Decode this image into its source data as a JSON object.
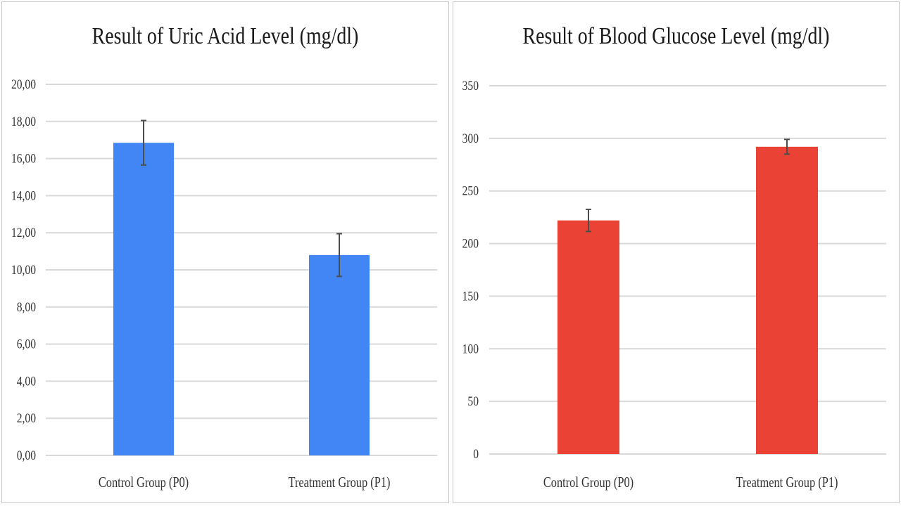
{
  "chart_data": [
    {
      "type": "bar",
      "title": "Result of Uric Acid Level (mg/dl)",
      "categories": [
        "Control Group (P0)",
        "Treatment Group (P1)"
      ],
      "values": [
        16.85,
        10.8
      ],
      "error": [
        1.2,
        1.15
      ],
      "ylim": [
        0,
        20
      ],
      "yticks": [
        "0,00",
        "2,00",
        "4,00",
        "6,00",
        "8,00",
        "10,00",
        "12,00",
        "14,00",
        "16,00",
        "18,00",
        "20,00"
      ],
      "color": "#4285f4",
      "grid": true
    },
    {
      "type": "bar",
      "title": "Result of Blood Glucose Level (mg/dl)",
      "categories": [
        "Control Group (P0)",
        "Treatment Group (P1)"
      ],
      "values": [
        222,
        292
      ],
      "error": [
        10.5,
        7
      ],
      "ylim": [
        0,
        350
      ],
      "yticks": [
        "0",
        "50",
        "100",
        "150",
        "200",
        "250",
        "300",
        "350"
      ],
      "color": "#ea4335",
      "grid": true
    }
  ]
}
